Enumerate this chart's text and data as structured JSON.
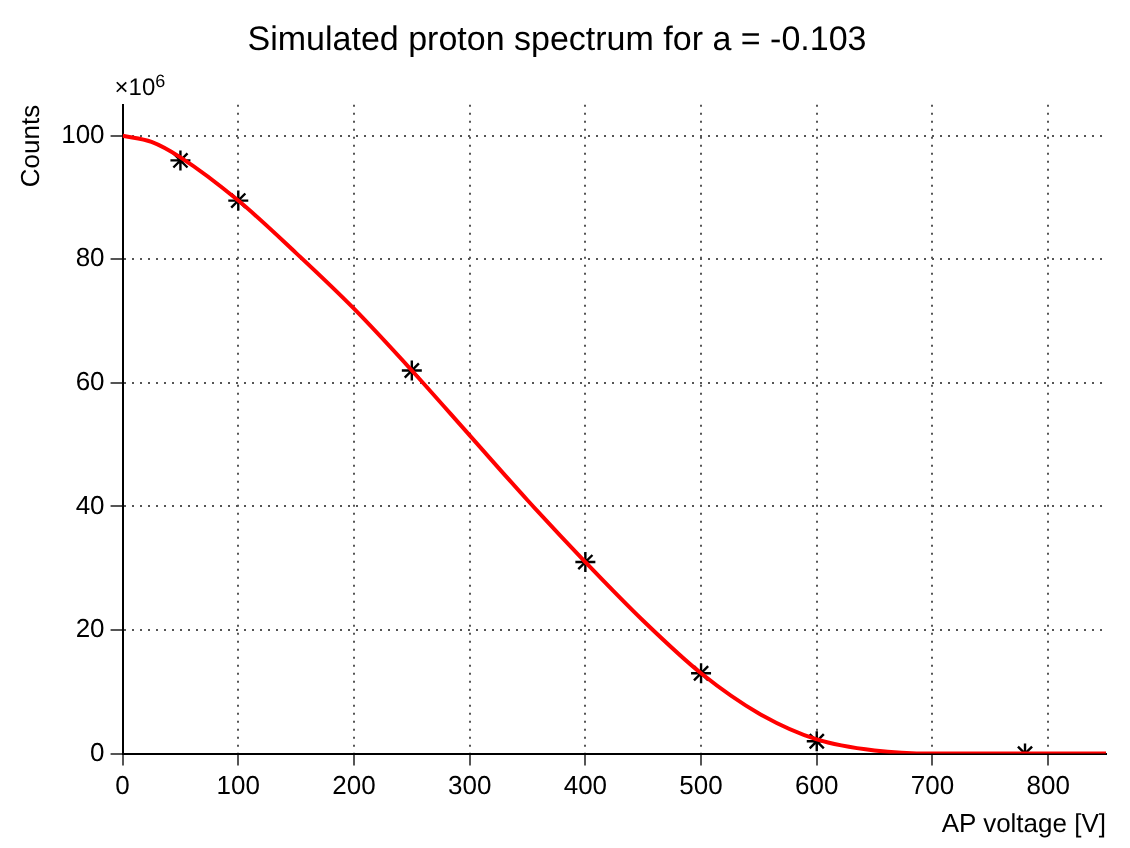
{
  "chart_data": {
    "type": "line",
    "title": "Simulated proton spectrum for a = -0.103",
    "xlabel": "AP voltage [V]",
    "ylabel": "Counts",
    "annotations": [
      "×10$^{6}$"
    ],
    "series": [
      {
        "color": "#ff0000",
        "marker": "none",
        "x": [
          0,
          25,
          50,
          100,
          150,
          200,
          250,
          300,
          350,
          400,
          450,
          500,
          550,
          600,
          650,
          700,
          850
        ],
        "values": [
          100,
          99,
          96.5,
          89.5,
          81,
          72,
          62,
          51.5,
          41,
          31,
          21.5,
          13,
          6.5,
          2.3,
          0.5,
          0,
          0
        ]
      },
      {
        "type": "scatter",
        "color": "#000000",
        "marker": "cross",
        "x": [
          50,
          100,
          250,
          400,
          500,
          600,
          780
        ],
        "values": [
          96,
          89.5,
          62,
          31,
          13,
          2,
          0
        ]
      }
    ],
    "xlim": [
      0,
      850
    ],
    "xticks": [
      0,
      100,
      200,
      300,
      400,
      500,
      600,
      700,
      800
    ],
    "ylim": [
      0,
      105
    ],
    "yticks": [
      0,
      20,
      40,
      60,
      80,
      100
    ],
    "grid": true,
    "legend": false
  }
}
